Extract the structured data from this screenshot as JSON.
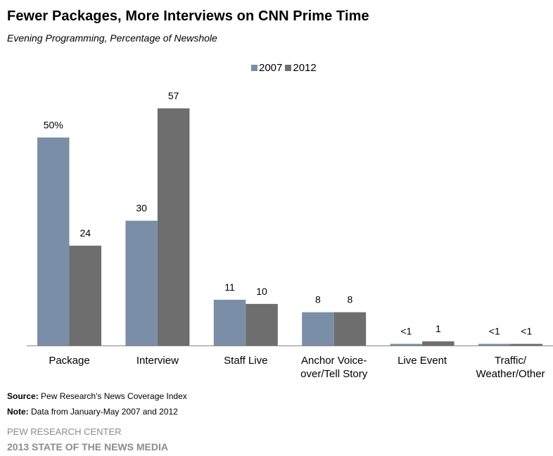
{
  "chart_data": {
    "type": "bar",
    "title": "Fewer Packages, More Interviews on CNN Prime Time",
    "subtitle": "Evening Programming, Percentage of Newshole",
    "categories": [
      [
        "Package"
      ],
      [
        "Interview"
      ],
      [
        "Staff Live"
      ],
      [
        "Anchor Voice-",
        "over/Tell Story"
      ],
      [
        "Live Event"
      ],
      [
        "Traffic/",
        "Weather/Other"
      ]
    ],
    "series": [
      {
        "name": "2007",
        "color": "#7b8ea8",
        "values": [
          50,
          30,
          11,
          8,
          0.4,
          0.4
        ],
        "labels": [
          "50%",
          "30",
          "11",
          "8",
          "<1",
          "<1"
        ]
      },
      {
        "name": "2012",
        "color": "#6e6e6e",
        "values": [
          24,
          57,
          10,
          8,
          1,
          0.4
        ],
        "labels": [
          "24",
          "57",
          "10",
          "8",
          "1",
          "<1"
        ]
      }
    ],
    "ylim": [
      0,
      57
    ],
    "xlabel": "",
    "ylabel": "",
    "grid": false,
    "legend_position": "top-center"
  },
  "footer": {
    "source_label": "Source:",
    "source_text": "Pew Research's News Coverage Index",
    "note_label": "Note:",
    "note_text": "Data from January-May 2007 and 2012",
    "organization": "PEW RESEARCH CENTER",
    "report": "2013 STATE OF THE NEWS MEDIA"
  }
}
